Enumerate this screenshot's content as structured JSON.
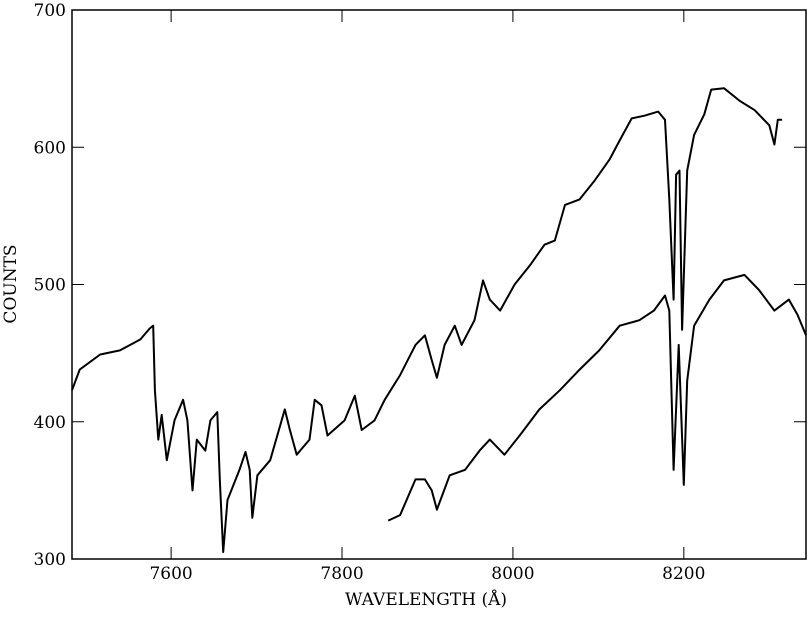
{
  "chart_data": {
    "type": "line",
    "xlabel": "WAVELENGTH (Å)",
    "ylabel": "COUNTS",
    "xlim": [
      7484,
      8343
    ],
    "ylim": [
      300,
      700
    ],
    "xticks": [
      7600,
      7800,
      8000,
      8200
    ],
    "yticks": [
      300,
      400,
      500,
      600,
      700
    ],
    "series": [
      {
        "color": "#000000",
        "x": [
          7484,
          7493,
          7517,
          7540,
          7564,
          7575,
          7579,
          7581,
          7585,
          7589,
          7595,
          7604,
          7614,
          7619,
          7625,
          7630,
          7640,
          7646,
          7654,
          7657,
          7661,
          7666,
          7680,
          7687,
          7692,
          7695,
          7701,
          7716,
          7733,
          7739,
          7747,
          7762,
          7768,
          7776,
          7783,
          7803,
          7815,
          7823,
          7838,
          7850,
          7868,
          7886,
          7897,
          7905,
          7911,
          7920,
          7932,
          7940,
          7955,
          7965,
          7973,
          7985,
          8002,
          8020,
          8037,
          8049,
          8061,
          8078,
          8096,
          8113,
          8125,
          8139,
          8154,
          8170,
          8178,
          8183,
          8188,
          8191,
          8195,
          8198,
          8204,
          8212,
          8224,
          8232,
          8247,
          8265,
          8283,
          8300,
          8306,
          8310,
          8315
        ],
        "values": [
          423,
          438,
          449,
          452,
          460,
          468,
          470,
          423,
          387,
          405,
          372,
          401,
          416,
          401,
          350,
          387,
          379,
          401,
          407,
          358,
          305,
          343,
          365,
          378,
          365,
          330,
          361,
          372,
          409,
          394,
          376,
          387,
          416,
          412,
          390,
          401,
          419,
          394,
          401,
          416,
          434,
          456,
          463,
          445,
          432,
          456,
          470,
          456,
          474,
          503,
          489,
          481,
          500,
          514,
          529,
          532,
          558,
          562,
          576,
          591,
          605,
          621,
          623,
          626,
          620,
          562,
          489,
          580,
          583,
          467,
          583,
          609,
          624,
          642,
          643,
          634,
          627,
          616,
          602,
          620,
          620
        ]
      },
      {
        "color": "#000000",
        "x": [
          7854,
          7868,
          7886,
          7897,
          7905,
          7911,
          7926,
          7944,
          7961,
          7973,
          7990,
          8008,
          8031,
          8055,
          8078,
          8101,
          8125,
          8148,
          8165,
          8178,
          8183,
          8188,
          8194,
          8200,
          8204,
          8212,
          8230,
          8247,
          8271,
          8288,
          8306,
          8323,
          8333,
          8343
        ],
        "values": [
          328,
          332,
          358,
          358,
          350,
          336,
          361,
          365,
          379,
          387,
          376,
          390,
          409,
          423,
          438,
          452,
          470,
          474,
          481,
          492,
          481,
          365,
          456,
          354,
          430,
          470,
          489,
          503,
          507,
          496,
          481,
          489,
          478,
          463
        ]
      }
    ]
  }
}
